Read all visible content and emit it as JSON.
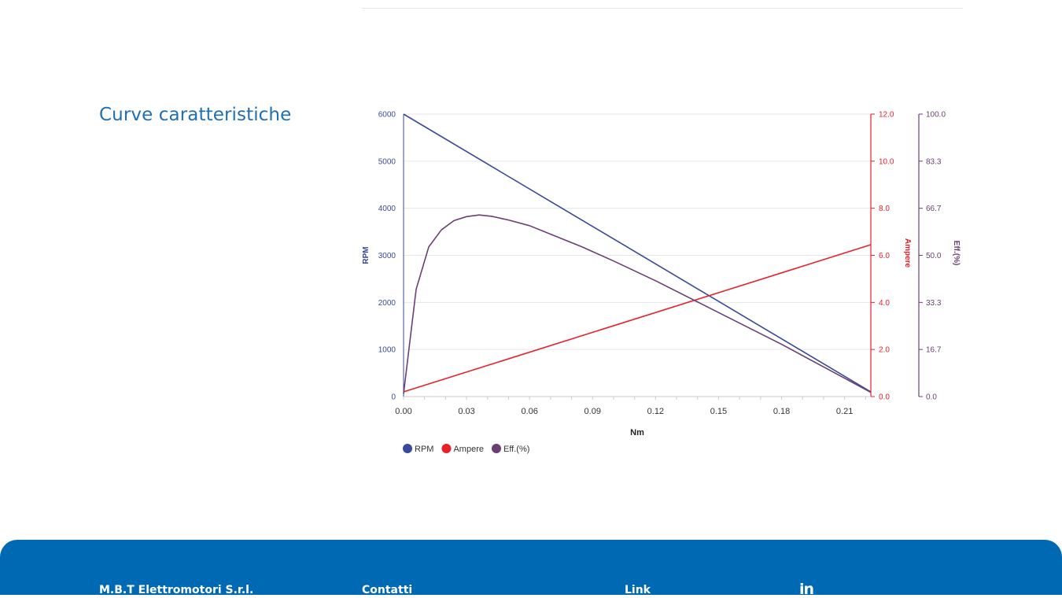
{
  "section": {
    "title": "Curve caratteristiche"
  },
  "chart_data": {
    "type": "line",
    "xlabel": "Nm",
    "x_ticks": [
      "0.00",
      "0.03",
      "0.06",
      "0.09",
      "0.12",
      "0.15",
      "0.18",
      "0.21"
    ],
    "xlim": [
      0,
      0.2225
    ],
    "axes": [
      {
        "id": "rpm",
        "label": "RPM",
        "range": [
          0,
          6000
        ],
        "ticks": [
          "0",
          "1000",
          "2000",
          "3000",
          "4000",
          "5000",
          "6000"
        ],
        "color": "#3a4a9b"
      },
      {
        "id": "amp",
        "label": "Ampere",
        "range": [
          0,
          12
        ],
        "ticks": [
          "0.0",
          "2.0",
          "4.0",
          "6.0",
          "8.0",
          "10.0",
          "12.0"
        ],
        "color": "#e8202a"
      },
      {
        "id": "eff",
        "label": "Eff.(%)",
        "range": [
          0,
          100
        ],
        "ticks": [
          "0.0",
          "16.7",
          "33.3",
          "50.0",
          "66.7",
          "83.3",
          "100.0"
        ],
        "color": "#6b3f74"
      }
    ],
    "series": [
      {
        "name": "RPM",
        "axis": "rpm",
        "color": "#3a4a9b",
        "points": [
          [
            0,
            6000
          ],
          [
            0.2225,
            100
          ]
        ]
      },
      {
        "name": "Ampere",
        "axis": "amp",
        "color": "#e8202a",
        "points": [
          [
            0,
            0.2
          ],
          [
            0.2225,
            6.45
          ]
        ]
      },
      {
        "name": "Eff.(%)",
        "axis": "eff",
        "color": "#6b3f74",
        "points": [
          [
            0,
            1
          ],
          [
            0.006,
            38
          ],
          [
            0.012,
            53
          ],
          [
            0.018,
            59
          ],
          [
            0.024,
            62.3
          ],
          [
            0.03,
            63.7
          ],
          [
            0.036,
            64.3
          ],
          [
            0.042,
            63.8
          ],
          [
            0.05,
            62.5
          ],
          [
            0.06,
            60.5
          ],
          [
            0.07,
            57.5
          ],
          [
            0.085,
            53
          ],
          [
            0.1,
            48
          ],
          [
            0.12,
            41
          ],
          [
            0.14,
            33.5
          ],
          [
            0.16,
            26
          ],
          [
            0.18,
            18.5
          ],
          [
            0.2,
            10.5
          ],
          [
            0.2225,
            1.5
          ]
        ]
      }
    ],
    "legend": {
      "position": "bottom-left"
    }
  },
  "footer": {
    "company": "M.B.T Elettromotori S.r.l.",
    "contacts": "Contatti",
    "links": "Link",
    "linkedin": "in"
  }
}
